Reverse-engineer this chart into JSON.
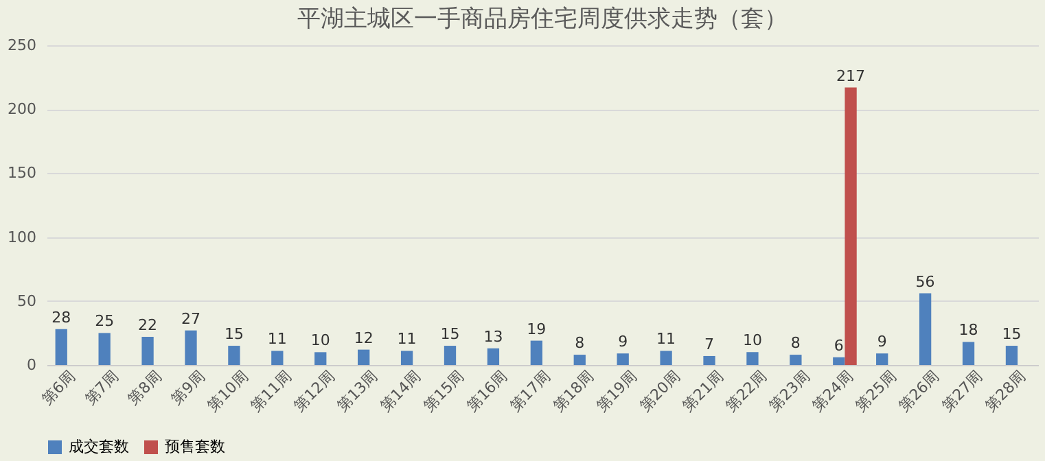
{
  "chart_data": {
    "type": "bar",
    "title": "平湖主城区一手商品房住宅周度供求走势（套）",
    "categories": [
      "第6周",
      "第7周",
      "第8周",
      "第9周",
      "第10周",
      "第11周",
      "第12周",
      "第13周",
      "第14周",
      "第15周",
      "第16周",
      "第17周",
      "第18周",
      "第19周",
      "第20周",
      "第21周",
      "第22周",
      "第23周",
      "第24周",
      "第25周",
      "第26周",
      "第27周",
      "第28周"
    ],
    "series": [
      {
        "name": "成交套数",
        "color": "#4f81bd",
        "values": [
          28,
          25,
          22,
          27,
          15,
          11,
          10,
          12,
          11,
          15,
          13,
          19,
          8,
          9,
          11,
          7,
          10,
          8,
          6,
          9,
          56,
          18,
          15
        ]
      },
      {
        "name": "预售套数",
        "color": "#c0504d",
        "values": [
          null,
          null,
          null,
          null,
          null,
          null,
          null,
          null,
          null,
          null,
          null,
          null,
          null,
          null,
          null,
          null,
          null,
          null,
          217,
          null,
          null,
          null,
          null
        ]
      }
    ],
    "ylim": [
      0,
      250
    ],
    "yticks": [
      0,
      50,
      100,
      150,
      200,
      250
    ],
    "grid": "y",
    "legend": "bottom",
    "data_labels": true
  }
}
